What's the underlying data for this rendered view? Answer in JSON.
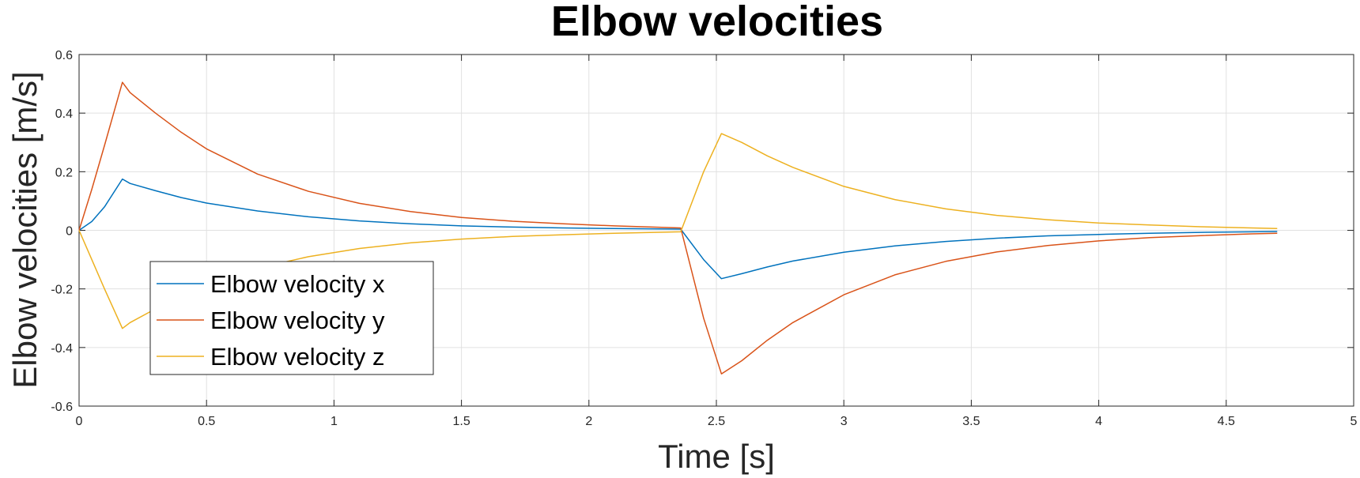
{
  "chart_data": {
    "type": "line",
    "title": "Elbow velocities",
    "xlabel": "Time [s]",
    "ylabel": "Elbow velocities [m/s]",
    "xlim": [
      0,
      5
    ],
    "ylim": [
      -0.6,
      0.6
    ],
    "xticks": [
      0,
      0.5,
      1,
      1.5,
      2,
      2.5,
      3,
      3.5,
      4,
      4.5,
      5
    ],
    "xtick_labels": [
      "0",
      "0.5",
      "1",
      "1.5",
      "2",
      "2.5",
      "3",
      "3.5",
      "4",
      "4.5",
      "5"
    ],
    "yticks": [
      -0.6,
      -0.4,
      -0.2,
      0,
      0.2,
      0.4,
      0.6
    ],
    "ytick_labels": [
      "-0.6",
      "-0.4",
      "-0.2",
      "0",
      "0.2",
      "0.4",
      "0.6"
    ],
    "grid": true,
    "legend_position": "lower-left",
    "series": [
      {
        "name": "Elbow velocity x",
        "color": "#0072BD",
        "x": [
          0,
          0.05,
          0.1,
          0.17,
          0.2,
          0.3,
          0.4,
          0.5,
          0.7,
          0.9,
          1.1,
          1.3,
          1.5,
          1.7,
          1.9,
          2.1,
          2.36,
          2.45,
          2.52,
          2.6,
          2.7,
          2.8,
          3.0,
          3.2,
          3.4,
          3.6,
          3.8,
          4.0,
          4.2,
          4.4,
          4.6,
          4.7
        ],
        "y": [
          0,
          0.03,
          0.08,
          0.175,
          0.16,
          0.135,
          0.112,
          0.093,
          0.066,
          0.046,
          0.032,
          0.022,
          0.015,
          0.011,
          0.008,
          0.006,
          0.004,
          -0.1,
          -0.165,
          -0.148,
          -0.125,
          -0.105,
          -0.075,
          -0.053,
          -0.038,
          -0.027,
          -0.019,
          -0.014,
          -0.01,
          -0.007,
          -0.005,
          -0.004
        ]
      },
      {
        "name": "Elbow velocity y",
        "color": "#D95319",
        "x": [
          0,
          0.05,
          0.1,
          0.17,
          0.2,
          0.3,
          0.4,
          0.5,
          0.7,
          0.9,
          1.1,
          1.3,
          1.5,
          1.7,
          1.9,
          2.1,
          2.36,
          2.45,
          2.52,
          2.6,
          2.7,
          2.8,
          3.0,
          3.2,
          3.4,
          3.6,
          3.8,
          4.0,
          4.2,
          4.4,
          4.6,
          4.7
        ],
        "y": [
          0,
          0.14,
          0.29,
          0.505,
          0.47,
          0.4,
          0.335,
          0.278,
          0.192,
          0.133,
          0.092,
          0.064,
          0.044,
          0.031,
          0.022,
          0.015,
          0.008,
          -0.3,
          -0.49,
          -0.445,
          -0.375,
          -0.315,
          -0.22,
          -0.152,
          -0.106,
          -0.074,
          -0.052,
          -0.036,
          -0.025,
          -0.018,
          -0.012,
          -0.01
        ]
      },
      {
        "name": "Elbow velocity z",
        "color": "#EDB120",
        "x": [
          0,
          0.05,
          0.1,
          0.17,
          0.2,
          0.3,
          0.4,
          0.5,
          0.7,
          0.9,
          1.1,
          1.3,
          1.5,
          1.7,
          1.9,
          2.1,
          2.36,
          2.45,
          2.52,
          2.6,
          2.7,
          2.8,
          3.0,
          3.2,
          3.4,
          3.6,
          3.8,
          4.0,
          4.2,
          4.4,
          4.6,
          4.7
        ],
        "y": [
          0,
          -0.1,
          -0.2,
          -0.335,
          -0.315,
          -0.268,
          -0.225,
          -0.187,
          -0.129,
          -0.09,
          -0.062,
          -0.043,
          -0.03,
          -0.021,
          -0.015,
          -0.01,
          -0.005,
          0.2,
          0.33,
          0.3,
          0.254,
          0.215,
          0.15,
          0.105,
          0.073,
          0.051,
          0.036,
          0.025,
          0.018,
          0.012,
          0.008,
          0.006
        ]
      }
    ]
  }
}
